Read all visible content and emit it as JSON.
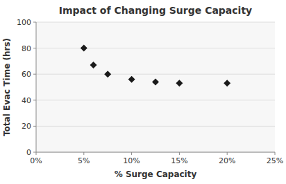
{
  "chart_data": {
    "type": "scatter",
    "title": "Impact of Changing Surge Capacity",
    "xlabel": "% Surge Capacity",
    "ylabel": "Total Evac Time (hrs)",
    "x": [
      0.05,
      0.06,
      0.075,
      0.1,
      0.125,
      0.15,
      0.2
    ],
    "values": [
      80,
      67,
      60,
      56,
      54,
      53,
      53
    ],
    "xlim": [
      0.0,
      0.25
    ],
    "ylim": [
      0,
      100
    ],
    "xticks": [
      {
        "value": 0.0,
        "label": "0%"
      },
      {
        "value": 0.05,
        "label": "5%"
      },
      {
        "value": 0.1,
        "label": "10%"
      },
      {
        "value": 0.15,
        "label": "15%"
      },
      {
        "value": 0.2,
        "label": "20%"
      },
      {
        "value": 0.25,
        "label": "25%"
      }
    ],
    "yticks": [
      0,
      20,
      40,
      60,
      80,
      100
    ],
    "marker": "diamond",
    "color": "#1a1a1a",
    "grid": true
  }
}
